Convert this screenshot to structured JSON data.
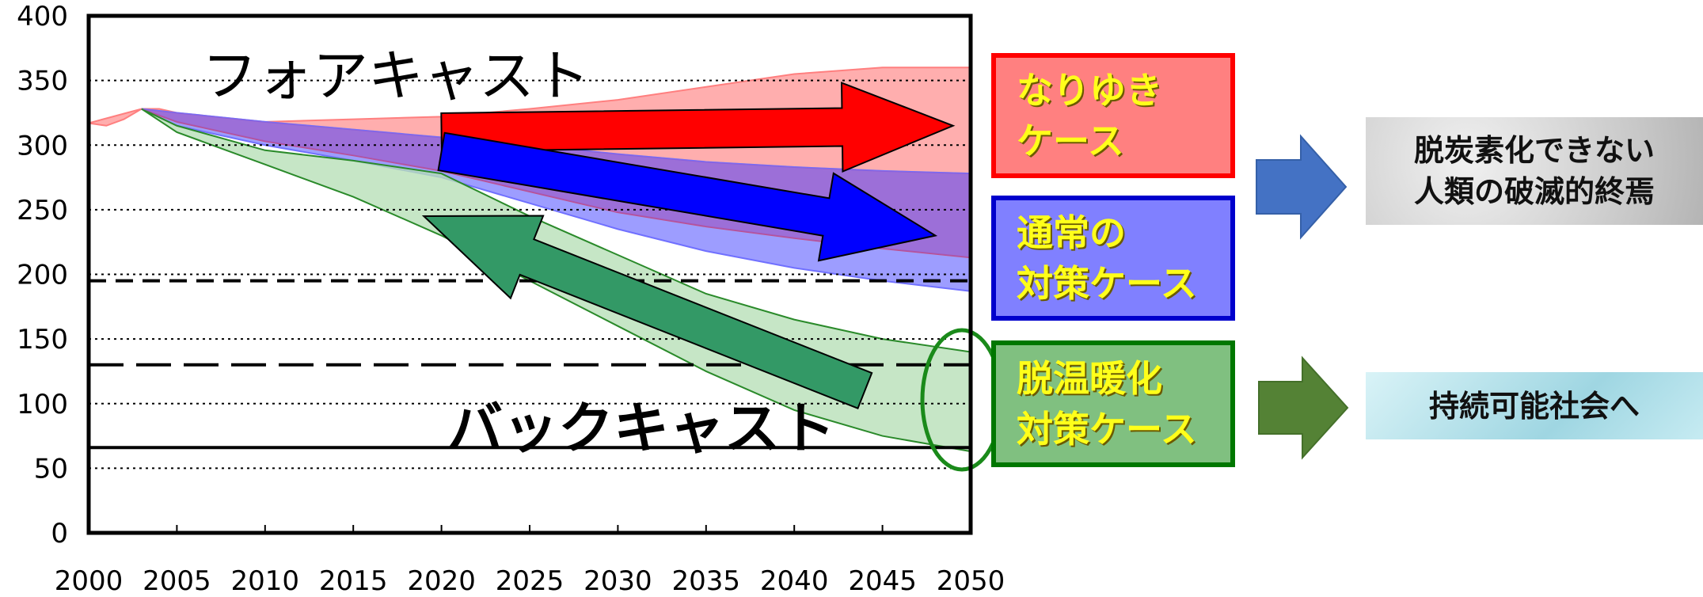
{
  "chart_data": {
    "type": "area",
    "x_range": [
      2000,
      2050
    ],
    "y_range": [
      0,
      400
    ],
    "x_ticks": [
      "2000",
      "2005",
      "2010",
      "2015",
      "2020",
      "2025",
      "2030",
      "2035",
      "2040",
      "2045",
      "2050"
    ],
    "y_ticks": [
      "0",
      "50",
      "100",
      "150",
      "200",
      "250",
      "300",
      "350",
      "400"
    ],
    "grid": "dotted horizontal",
    "bands": [
      {
        "label": "なりゆきケース",
        "color": "#ff9a9a",
        "upper": [
          [
            2000,
            317
          ],
          [
            2001,
            315
          ],
          [
            2002,
            320
          ],
          [
            2003,
            328
          ],
          [
            2004,
            328
          ],
          [
            2005,
            325
          ],
          [
            2010,
            318
          ],
          [
            2015,
            320
          ],
          [
            2020,
            322
          ],
          [
            2025,
            328
          ],
          [
            2030,
            335
          ],
          [
            2035,
            345
          ],
          [
            2040,
            355
          ],
          [
            2045,
            360
          ],
          [
            2050,
            360
          ]
        ],
        "lower": [
          [
            2003,
            328
          ],
          [
            2005,
            325
          ],
          [
            2010,
            318
          ],
          [
            2015,
            312
          ],
          [
            2020,
            306
          ],
          [
            2025,
            300
          ],
          [
            2030,
            293
          ],
          [
            2035,
            287
          ],
          [
            2040,
            283
          ],
          [
            2045,
            280
          ],
          [
            2050,
            278
          ]
        ]
      },
      {
        "label": "通常の対策ケース",
        "color": "#8c8cff",
        "upper": [
          [
            2003,
            328
          ],
          [
            2005,
            325
          ],
          [
            2010,
            318
          ],
          [
            2015,
            312
          ],
          [
            2020,
            306
          ],
          [
            2025,
            300
          ],
          [
            2030,
            293
          ],
          [
            2035,
            287
          ],
          [
            2040,
            283
          ],
          [
            2045,
            280
          ],
          [
            2050,
            278
          ]
        ],
        "lower": [
          [
            2003,
            328
          ],
          [
            2005,
            315
          ],
          [
            2010,
            300
          ],
          [
            2015,
            288
          ],
          [
            2020,
            275
          ],
          [
            2025,
            255
          ],
          [
            2030,
            235
          ],
          [
            2035,
            218
          ],
          [
            2040,
            205
          ],
          [
            2045,
            195
          ],
          [
            2050,
            187
          ]
        ],
        "inner_line": [
          [
            2003,
            328
          ],
          [
            2005,
            318
          ],
          [
            2010,
            303
          ],
          [
            2015,
            292
          ],
          [
            2020,
            280
          ],
          [
            2025,
            264
          ],
          [
            2030,
            248
          ],
          [
            2035,
            237
          ],
          [
            2040,
            228
          ],
          [
            2045,
            220
          ],
          [
            2050,
            213
          ]
        ]
      },
      {
        "label": "脱温暖化対策ケース",
        "color": "#b8e0b8",
        "upper": [
          [
            2003,
            328
          ],
          [
            2005,
            315
          ],
          [
            2010,
            296
          ],
          [
            2015,
            288
          ],
          [
            2020,
            278
          ],
          [
            2025,
            245
          ],
          [
            2030,
            215
          ],
          [
            2035,
            185
          ],
          [
            2040,
            165
          ],
          [
            2045,
            150
          ],
          [
            2050,
            140
          ]
        ],
        "lower": [
          [
            2003,
            328
          ],
          [
            2005,
            310
          ],
          [
            2010,
            285
          ],
          [
            2015,
            260
          ],
          [
            2020,
            230
          ],
          [
            2025,
            195
          ],
          [
            2030,
            160
          ],
          [
            2035,
            125
          ],
          [
            2040,
            95
          ],
          [
            2045,
            75
          ],
          [
            2050,
            63
          ]
        ]
      }
    ],
    "reference_lines": [
      {
        "y": 195,
        "style": "dashed"
      },
      {
        "y": 130,
        "style": "long-dashed"
      },
      {
        "y": 66,
        "style": "solid"
      }
    ],
    "arrows": [
      {
        "color": "#ff0000",
        "from": [
          2020,
          310
        ],
        "to": [
          2049,
          315
        ]
      },
      {
        "color": "#0000ff",
        "from": [
          2020,
          295
        ],
        "to": [
          2048,
          230
        ]
      },
      {
        "color": "#339966",
        "from": [
          2044,
          110
        ],
        "to": [
          2019,
          245
        ]
      }
    ],
    "annotations": [
      "フォアキャスト",
      "バックキャスト"
    ]
  },
  "labels": {
    "forecast": "フォアキャスト",
    "backcast": "バックキャスト"
  },
  "cases": {
    "narigyuki": {
      "text": "なりゆき\nケース",
      "bg": "#ff8080",
      "border": "#ff0000"
    },
    "normal": {
      "text": "通常の\n対策ケース",
      "bg": "#8080ff",
      "border": "#0000cc"
    },
    "datsu": {
      "text": "脱温暖化\n対策ケース",
      "bg": "#80c080",
      "border": "#007700"
    }
  },
  "results": {
    "bad": {
      "text": "脱炭素化できない\n人類の破滅的終焉",
      "arrow_color": "#4472c4",
      "bg": "#d6d6d6"
    },
    "good": {
      "text": "持続可能社会へ",
      "arrow_color": "#548235",
      "bg": "#b7e4ee"
    }
  }
}
